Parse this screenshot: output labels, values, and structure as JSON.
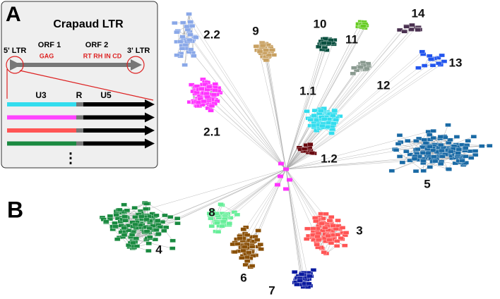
{
  "panel_a": {
    "letter": "A",
    "title": "Crapaud LTR",
    "labels": {
      "ltr5": "5' LTR",
      "orf1": "ORF 1",
      "orf2": "ORF 2",
      "ltr3": "3' LTR",
      "gag": "GAG",
      "domains": "RT RH IN CD",
      "u3": "U3",
      "r": "R",
      "u5": "U5",
      "more": "⋮"
    },
    "bar_colors": [
      "#33ddee",
      "#ff44ff",
      "#ff5555",
      "#1a8a40"
    ]
  },
  "panel_b": {
    "letter": "B",
    "clusters": [
      {
        "label": "2.2",
        "color": "#8aa8e8"
      },
      {
        "label": "2.1",
        "color": "#ff33ff"
      },
      {
        "label": "9",
        "color": "#c8a060"
      },
      {
        "label": "10",
        "color": "#0b5040"
      },
      {
        "label": "11",
        "color": "#66cc22"
      },
      {
        "label": "14",
        "color": "#4a3050"
      },
      {
        "label": "12",
        "color": "#8a9a90"
      },
      {
        "label": "13",
        "color": "#2255ee"
      },
      {
        "label": "1.1",
        "color": "#33ddee"
      },
      {
        "label": "1.2",
        "color": "#6a0a10"
      },
      {
        "label": "5",
        "color": "#1a6aa5"
      },
      {
        "label": "4",
        "color": "#1a8a40"
      },
      {
        "label": "8",
        "color": "#66ee99"
      },
      {
        "label": "6",
        "color": "#8a5008"
      },
      {
        "label": "3",
        "color": "#ff5555"
      },
      {
        "label": "7",
        "color": "#0a1aa0"
      }
    ]
  }
}
